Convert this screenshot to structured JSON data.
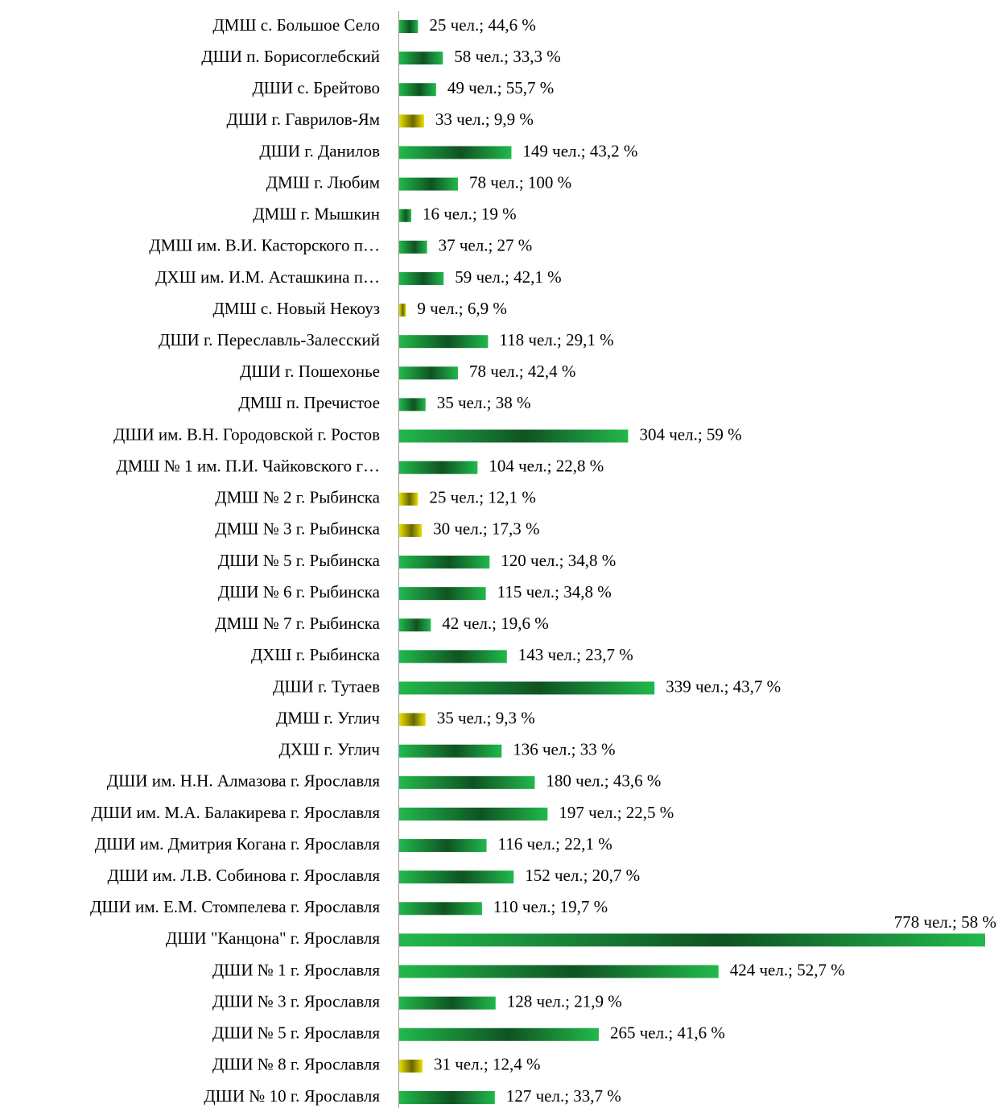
{
  "chart_data": {
    "type": "barh",
    "categories": [
      "ДМШ с. Большое Село",
      "ДШИ п. Борисоглебский",
      "ДШИ с. Брейтово",
      "ДШИ г. Гаврилов-Ям",
      "ДШИ г. Данилов",
      "ДМШ г. Любим",
      "ДМШ г. Мышкин",
      "ДМШ им. В.И. Касторского п…",
      "ДХШ им. И.М. Асташкина п…",
      "ДМШ с. Новый Некоуз",
      "ДШИ г. Переславль-Залесский",
      "ДШИ г. Пошехонье",
      "ДМШ п. Пречистое",
      "ДШИ им. В.Н. Городовской г. Ростов",
      "ДМШ № 1 им. П.И. Чайковского г…",
      "ДМШ № 2 г. Рыбинска",
      "ДМШ № 3 г. Рыбинска",
      "ДШИ № 5 г. Рыбинска",
      "ДШИ № 6 г. Рыбинска",
      "ДМШ № 7 г. Рыбинска",
      "ДХШ г. Рыбинска",
      "ДШИ г. Тутаев",
      "ДМШ г. Углич",
      "ДХШ г. Углич",
      "ДШИ им. Н.Н. Алмазова г. Ярославля",
      "ДШИ им. М.А. Балакирева г. Ярославля",
      "ДШИ им. Дмитрия Когана г. Ярославля",
      "ДШИ им. Л.В. Собинова г. Ярославля",
      "ДШИ им. Е.М. Стомпелева г. Ярославля",
      "ДШИ \"Канцона\" г. Ярославля",
      "ДШИ № 1 г. Ярославля",
      "ДШИ № 3 г. Ярославля",
      "ДШИ № 5 г. Ярославля",
      "ДШИ № 8 г. Ярославля",
      "ДШИ № 10 г. Ярославля"
    ],
    "values": [
      25,
      58,
      49,
      33,
      149,
      78,
      16,
      37,
      59,
      9,
      118,
      78,
      35,
      304,
      104,
      25,
      30,
      120,
      115,
      42,
      143,
      339,
      35,
      136,
      180,
      197,
      116,
      152,
      110,
      778,
      424,
      128,
      265,
      31,
      127
    ],
    "value_labels": [
      "25 чел.; 44,6 %",
      "58 чел.; 33,3 %",
      "49 чел.; 55,7 %",
      "33 чел.; 9,9 %",
      "149 чел.; 43,2 %",
      "78 чел.; 100 %",
      "16 чел.; 19 %",
      "37 чел.; 27 %",
      "59 чел.; 42,1 %",
      "9 чел.; 6,9 %",
      "118 чел.; 29,1 %",
      "78 чел.; 42,4 %",
      "35 чел.; 38 %",
      "304 чел.; 59 %",
      "104 чел.; 22,8 %",
      "25 чел.; 12,1 %",
      "30 чел.; 17,3 %",
      "120 чел.; 34,8 %",
      "115 чел.; 34,8 %",
      "42 чел.; 19,6 %",
      "143 чел.; 23,7 %",
      "339 чел.; 43,7 %",
      "35 чел.; 9,3 %",
      "136 чел.; 33 %",
      "180 чел.; 43,6 %",
      "197 чел.; 22,5 %",
      "116 чел.; 22,1 %",
      "152 чел.; 20,7 %",
      "110 чел.; 19,7 %",
      "778 чел.; 58 %",
      "424 чел.; 52,7 %",
      "128 чел.; 21,9 %",
      "265 чел.; 41,6 %",
      "31 чел.; 12,4 %",
      "127 чел.; 33,7 %"
    ],
    "colors": [
      "#22b84c",
      "#22b84c",
      "#22b84c",
      "#e8e000",
      "#22b84c",
      "#22b84c",
      "#22b84c",
      "#22b84c",
      "#22b84c",
      "#e8e000",
      "#22b84c",
      "#22b84c",
      "#22b84c",
      "#22b84c",
      "#22b84c",
      "#e8e000",
      "#e8e000",
      "#22b84c",
      "#22b84c",
      "#22b84c",
      "#22b84c",
      "#22b84c",
      "#e8e000",
      "#22b84c",
      "#22b84c",
      "#22b84c",
      "#22b84c",
      "#22b84c",
      "#22b84c",
      "#22b84c",
      "#22b84c",
      "#22b84c",
      "#22b84c",
      "#e8e000",
      "#22b84c"
    ]
  }
}
